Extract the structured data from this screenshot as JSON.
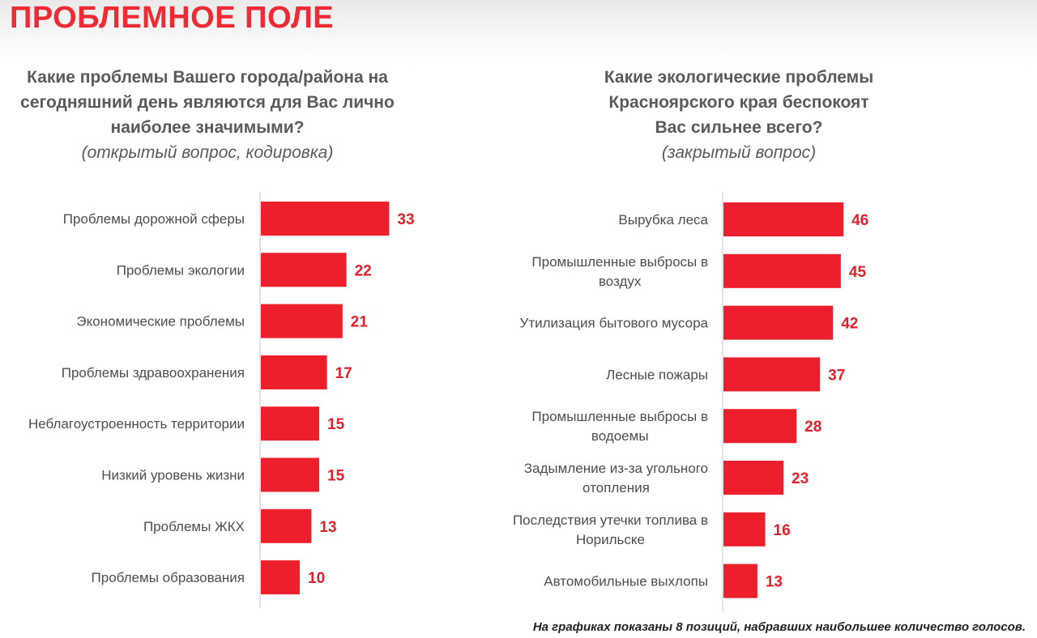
{
  "page_title": "ПРОБЛЕМНОЕ ПОЛЕ",
  "left_question": {
    "lines": [
      "Какие проблемы Вашего города/района на",
      "сегодняшний день являются для Вас лично",
      "наиболее значимыми?"
    ],
    "note": "(открытый вопрос, кодировка)"
  },
  "right_question": {
    "lines": [
      "Какие экологические проблемы",
      "Красноярского края беспокоят",
      "Вас сильнее всего?"
    ],
    "note": "(закрытый вопрос)"
  },
  "footnote": "На графиках показаны 8 позиций, набравших наибольшее количество голосов.",
  "colors": {
    "bar": "#ee1f2d",
    "value": "#e0202b",
    "axis": "#d8d8d8",
    "title": "#ee2a35"
  },
  "chart_data": [
    {
      "type": "bar",
      "orientation": "horizontal",
      "categories": [
        [
          "Проблемы дорожной сферы"
        ],
        [
          "Проблемы экологии"
        ],
        [
          "Экономические проблемы"
        ],
        [
          "Проблемы здравоохранения"
        ],
        [
          "Неблагоустроенность территории"
        ],
        [
          "Низкий уровень жизни"
        ],
        [
          "Проблемы ЖКХ"
        ],
        [
          "Проблемы образования"
        ]
      ],
      "values": [
        33,
        22,
        21,
        17,
        15,
        15,
        13,
        10
      ],
      "title": "",
      "xlabel": "",
      "ylabel": "",
      "grid": false,
      "data_labels": true
    },
    {
      "type": "bar",
      "orientation": "horizontal",
      "categories": [
        [
          "Вырубка леса"
        ],
        [
          "Промышленные выбросы в",
          "воздух"
        ],
        [
          "Утилизация бытового мусора"
        ],
        [
          "Лесные пожары"
        ],
        [
          "Промышленные выбросы в",
          "водоемы"
        ],
        [
          "Задымление из-за угольного",
          "отопления"
        ],
        [
          "Последствия утечки топлива в",
          "Норильске"
        ],
        [
          "Автомобильные выхлопы"
        ]
      ],
      "values": [
        46,
        45,
        42,
        37,
        28,
        23,
        16,
        13
      ],
      "title": "",
      "xlabel": "",
      "ylabel": "",
      "grid": false,
      "data_labels": true
    }
  ]
}
